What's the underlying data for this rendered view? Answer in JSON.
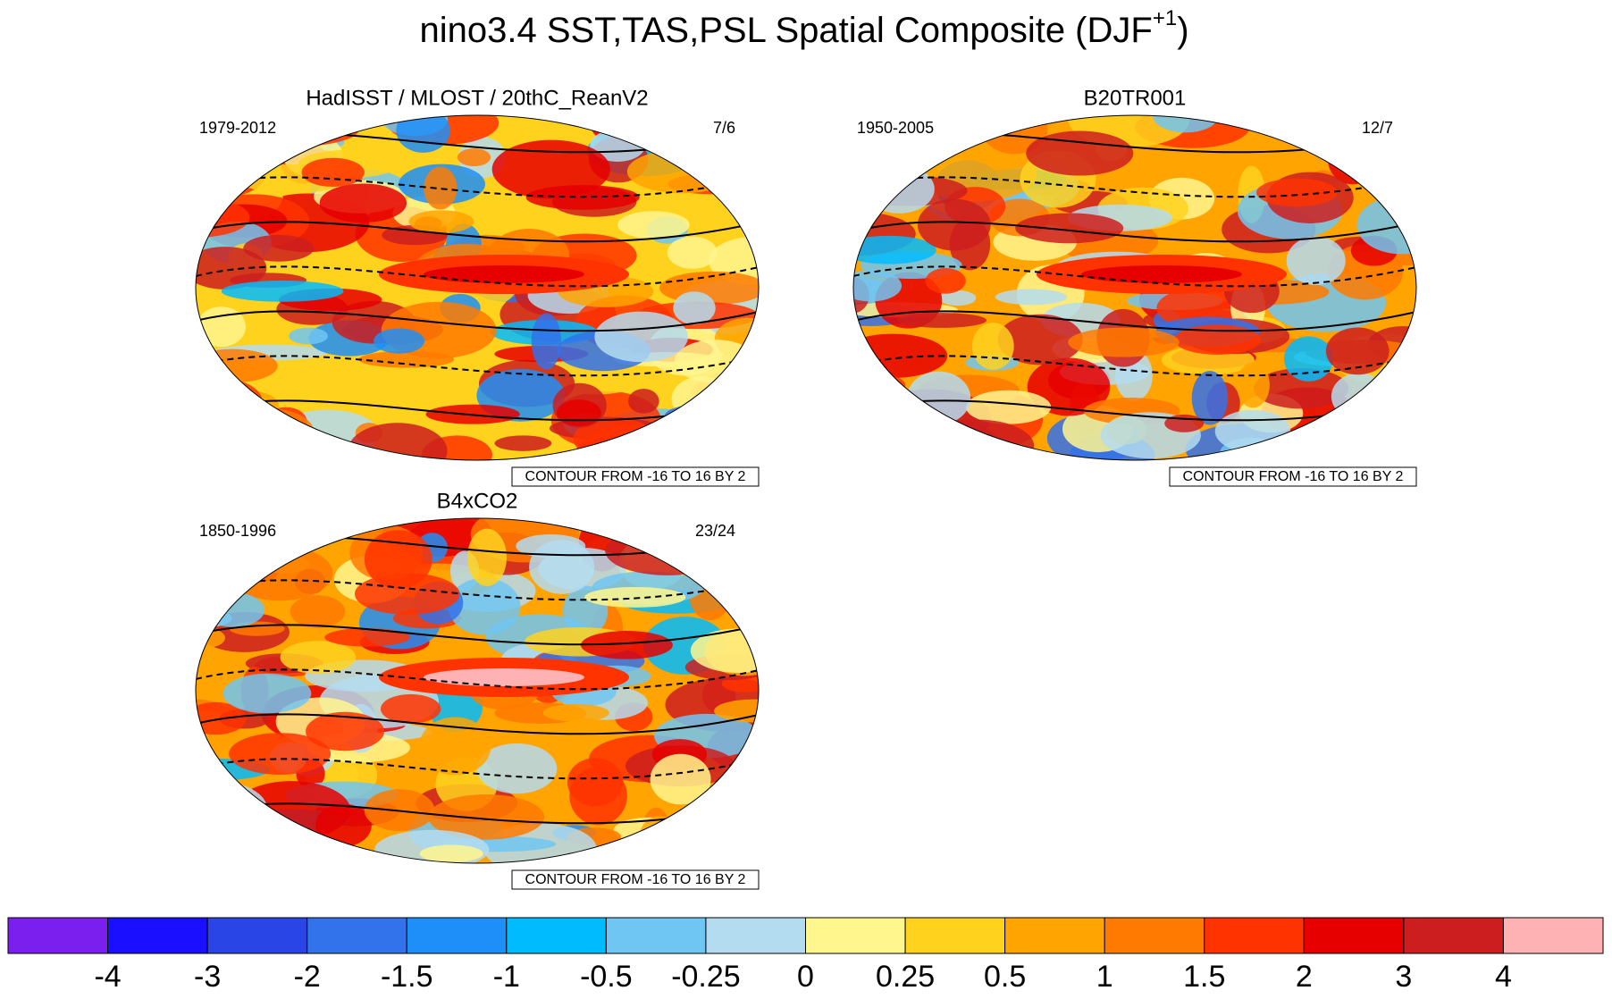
{
  "title": {
    "main": "nino3.4 SST,TAS,PSL Spatial Composite (DJF",
    "sup": "+1",
    "close": ")"
  },
  "panels": [
    {
      "title": "HadISST / MLOST / 20thC_ReanV2",
      "years": "1979-2012",
      "ratio": "7/6",
      "contour": "CONTOUR FROM -16 TO 16 BY 2"
    },
    {
      "title": "B20TR001",
      "years": "1950-2005",
      "ratio": "12/7",
      "contour": "CONTOUR FROM -16 TO 16 BY 2"
    },
    {
      "title": "B4xCO2",
      "years": "1850-1996",
      "ratio": "23/24",
      "contour": "CONTOUR FROM -16 TO 16 BY 2"
    }
  ],
  "colorbar": {
    "labels": [
      -4,
      -3,
      -2,
      -1.5,
      -1,
      -0.5,
      -0.25,
      0,
      0.25,
      0.5,
      1,
      1.5,
      2,
      3,
      4
    ],
    "colors": [
      "#7b1fee",
      "#1a10ff",
      "#2a45e6",
      "#3272ea",
      "#1e8ff8",
      "#00bcff",
      "#70c6f2",
      "#b4dcf0",
      "#fff68e",
      "#ffd21e",
      "#ffa400",
      "#ff7a00",
      "#ff3300",
      "#e60000",
      "#cc1e1e",
      "#ffb2b4"
    ]
  }
}
